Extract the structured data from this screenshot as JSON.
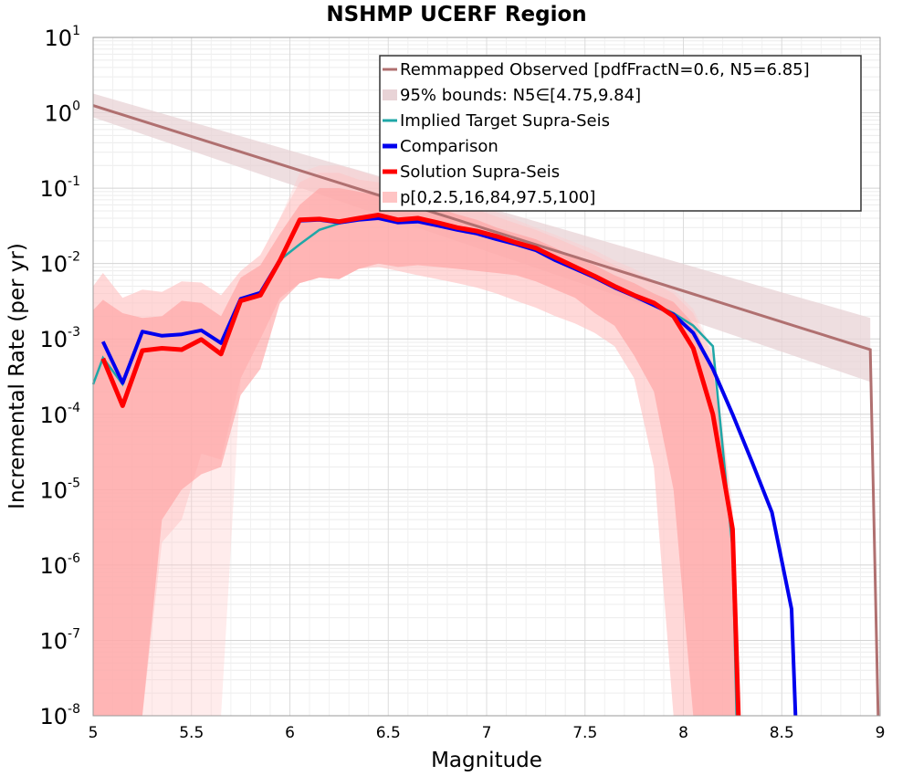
{
  "chart_data": {
    "type": "line",
    "title": "NSHMP UCERF Region",
    "xlabel": "Magnitude",
    "ylabel": "Incremental Rate (per yr)",
    "xlim": [
      5,
      9
    ],
    "ylim_log10": [
      -8,
      1
    ],
    "y_scale": "log",
    "grid": true,
    "legend_position": "top-right",
    "xticks": [
      "5",
      "5.5",
      "6",
      "6.5",
      "7",
      "7.5",
      "8",
      "8.5",
      "9"
    ],
    "yticks": [
      {
        "base": "10",
        "exp": "1"
      },
      {
        "base": "10",
        "exp": "0"
      },
      {
        "base": "10",
        "exp": "-1"
      },
      {
        "base": "10",
        "exp": "-2"
      },
      {
        "base": "10",
        "exp": "-3"
      },
      {
        "base": "10",
        "exp": "-4"
      },
      {
        "base": "10",
        "exp": "-5"
      },
      {
        "base": "10",
        "exp": "-6"
      },
      {
        "base": "10",
        "exp": "-7"
      },
      {
        "base": "10",
        "exp": "-8"
      }
    ],
    "legend": [
      {
        "label": "Remmapped Observed [pdfFractN=0.6, N5=6.85]",
        "color": "#b07070",
        "kind": "line"
      },
      {
        "label": "95% bounds: N5∈[4.75,9.84]",
        "color": "#e8d3d6",
        "kind": "band"
      },
      {
        "label": "Implied Target Supra-Seis",
        "color": "#1fa7a7",
        "kind": "line"
      },
      {
        "label": "Comparison",
        "color": "#0000ee",
        "kind": "line"
      },
      {
        "label": "Solution Supra-Seis",
        "color": "#ff0000",
        "kind": "line"
      },
      {
        "label": "p[0,2.5,16,84,97.5,100]",
        "color": "#ffc4c4",
        "kind": "band"
      }
    ],
    "series": [
      {
        "name": "Remmapped Observed [pdfFractN=0.6, N5=6.85]",
        "color": "#b07070",
        "x": [
          5.0,
          8.95,
          8.99
        ],
        "y": [
          1.25,
          0.00072,
          1e-08
        ]
      },
      {
        "name": "95% bounds: N5∈[4.75,9.84]",
        "color": "#e8d3d6",
        "x": [
          5.0,
          8.95
        ],
        "lower": [
          0.87,
          0.00027
        ],
        "upper": [
          1.8,
          0.0019
        ]
      },
      {
        "name": "Implied Target Supra-Seis",
        "color": "#1fa7a7",
        "x": [
          5.0,
          5.05,
          5.15,
          5.25,
          5.35,
          5.45,
          5.55,
          5.65,
          5.75,
          5.85,
          5.95,
          6.05,
          6.15,
          6.25,
          6.35,
          6.45,
          6.55,
          6.65,
          6.75,
          6.85,
          6.95,
          7.05,
          7.15,
          7.25,
          7.35,
          7.45,
          7.55,
          7.65,
          7.75,
          7.85,
          7.95,
          8.05,
          8.15,
          8.25,
          8.27
        ],
        "y": [
          0.00025,
          0.00056,
          0.00025,
          0.00125,
          0.0011,
          0.00115,
          0.0013,
          0.00088,
          0.0034,
          0.0041,
          0.0112,
          0.018,
          0.028,
          0.034,
          0.038,
          0.04,
          0.035,
          0.036,
          0.032,
          0.028,
          0.025,
          0.021,
          0.018,
          0.015,
          0.011,
          0.0085,
          0.0065,
          0.0048,
          0.0037,
          0.0029,
          0.0022,
          0.0015,
          0.0008,
          1.6e-06,
          1e-08
        ]
      },
      {
        "name": "Comparison",
        "color": "#0000ee",
        "x": [
          5.05,
          5.15,
          5.25,
          5.35,
          5.45,
          5.55,
          5.65,
          5.75,
          5.85,
          5.95,
          6.05,
          6.15,
          6.25,
          6.35,
          6.45,
          6.55,
          6.65,
          6.75,
          6.85,
          6.95,
          7.05,
          7.15,
          7.25,
          7.35,
          7.45,
          7.55,
          7.65,
          7.75,
          7.85,
          7.95,
          8.05,
          8.15,
          8.25,
          8.35,
          8.45,
          8.55,
          8.57
        ],
        "y": [
          0.00092,
          0.00026,
          0.00125,
          0.0011,
          0.00115,
          0.0013,
          0.00088,
          0.0034,
          0.0041,
          0.0112,
          0.037,
          0.038,
          0.035,
          0.038,
          0.04,
          0.035,
          0.036,
          0.032,
          0.028,
          0.025,
          0.021,
          0.018,
          0.015,
          0.011,
          0.0085,
          0.0065,
          0.0048,
          0.0037,
          0.0028,
          0.0021,
          0.0012,
          0.0004,
          0.0001,
          2.3e-05,
          5e-06,
          2.6e-07,
          1e-08
        ]
      },
      {
        "name": "Solution Supra-Seis",
        "color": "#ff0000",
        "x": [
          5.05,
          5.15,
          5.25,
          5.35,
          5.45,
          5.55,
          5.65,
          5.75,
          5.85,
          5.95,
          6.05,
          6.15,
          6.25,
          6.35,
          6.45,
          6.55,
          6.65,
          6.75,
          6.85,
          6.95,
          7.05,
          7.15,
          7.25,
          7.35,
          7.45,
          7.55,
          7.65,
          7.75,
          7.85,
          7.95,
          8.05,
          8.15,
          8.25,
          8.28
        ],
        "y": [
          0.00055,
          0.00013,
          0.0007,
          0.00075,
          0.00072,
          0.00098,
          0.00063,
          0.0032,
          0.0038,
          0.011,
          0.038,
          0.039,
          0.036,
          0.04,
          0.044,
          0.038,
          0.04,
          0.035,
          0.03,
          0.027,
          0.023,
          0.019,
          0.016,
          0.012,
          0.009,
          0.0068,
          0.005,
          0.0038,
          0.003,
          0.002,
          0.00075,
          0.0001,
          3e-06,
          1e-08
        ]
      },
      {
        "name": "p[0,2.5,16,84,97.5,100]",
        "color": "#ffc4c4",
        "x": [
          5.0,
          5.05,
          5.15,
          5.25,
          5.35,
          5.45,
          5.55,
          5.65,
          5.75,
          5.85,
          5.95,
          6.05,
          6.15,
          6.25,
          6.35,
          6.45,
          6.55,
          6.65,
          6.75,
          6.85,
          6.95,
          7.05,
          7.15,
          7.25,
          7.35,
          7.45,
          7.55,
          7.65,
          7.75,
          7.85,
          7.95,
          8.05,
          8.15,
          8.25,
          8.28
        ],
        "p0": [
          1e-08,
          1e-08,
          1e-08,
          1e-08,
          1e-08,
          1e-08,
          1e-08,
          1e-08,
          0.0003,
          0.001,
          0.0035,
          0.0055,
          0.0065,
          0.0062,
          0.0085,
          0.009,
          0.008,
          0.007,
          0.0062,
          0.0055,
          0.0048,
          0.004,
          0.0032,
          0.0026,
          0.002,
          0.0016,
          0.0012,
          0.0008,
          0.0003,
          2e-05,
          1e-08,
          1e-08,
          1e-08,
          1e-08,
          1e-08
        ],
        "p2_5": [
          1e-08,
          1e-08,
          1e-08,
          1e-08,
          2e-06,
          4e-06,
          3e-05,
          2.5e-05,
          0.0003,
          0.001,
          0.0035,
          0.0055,
          0.0065,
          0.0062,
          0.0085,
          0.009,
          0.008,
          0.007,
          0.0062,
          0.0055,
          0.0048,
          0.004,
          0.0032,
          0.0026,
          0.002,
          0.0016,
          0.0012,
          0.0008,
          0.0003,
          2e-05,
          1e-08,
          1e-08,
          1e-08,
          1e-08,
          1e-08
        ],
        "p16": [
          1e-08,
          1e-08,
          1e-08,
          1e-08,
          4e-06,
          1e-05,
          1.6e-05,
          2e-05,
          0.00018,
          0.0004,
          0.003,
          0.0055,
          0.0065,
          0.0062,
          0.0085,
          0.01,
          0.009,
          0.0095,
          0.009,
          0.0085,
          0.008,
          0.0075,
          0.007,
          0.0058,
          0.0045,
          0.0035,
          0.0022,
          0.0015,
          0.0006,
          0.0002,
          1e-05,
          1e-08,
          1e-08,
          1e-08,
          1e-08
        ],
        "p84": [
          0.0024,
          0.0033,
          0.0022,
          0.0019,
          0.002,
          0.0032,
          0.003,
          0.002,
          0.0065,
          0.0095,
          0.025,
          0.06,
          0.1,
          0.1,
          0.09,
          0.08,
          0.07,
          0.06,
          0.055,
          0.045,
          0.038,
          0.03,
          0.025,
          0.021,
          0.016,
          0.012,
          0.0095,
          0.007,
          0.0055,
          0.004,
          0.0031,
          0.0016,
          0.0004,
          3e-06,
          1e-08
        ],
        "p97_5": [
          0.005,
          0.0075,
          0.0035,
          0.0045,
          0.0042,
          0.0058,
          0.0056,
          0.0038,
          0.008,
          0.013,
          0.04,
          0.12,
          0.16,
          0.16,
          0.13,
          0.12,
          0.1,
          0.095,
          0.08,
          0.065,
          0.052,
          0.042,
          0.034,
          0.028,
          0.022,
          0.017,
          0.013,
          0.0095,
          0.0075,
          0.0055,
          0.004,
          0.0022,
          0.0006,
          5e-06,
          1e-08
        ],
        "p100": [
          0.005,
          0.0075,
          0.0035,
          0.0045,
          0.0042,
          0.0058,
          0.0056,
          0.0038,
          0.008,
          0.013,
          0.04,
          0.16,
          0.2,
          0.2,
          0.17,
          0.14,
          0.12,
          0.11,
          0.09,
          0.075,
          0.06,
          0.048,
          0.038,
          0.03,
          0.024,
          0.019,
          0.015,
          0.011,
          0.0085,
          0.006,
          0.0045,
          0.0025,
          0.0007,
          6e-06,
          1e-08
        ]
      }
    ]
  }
}
